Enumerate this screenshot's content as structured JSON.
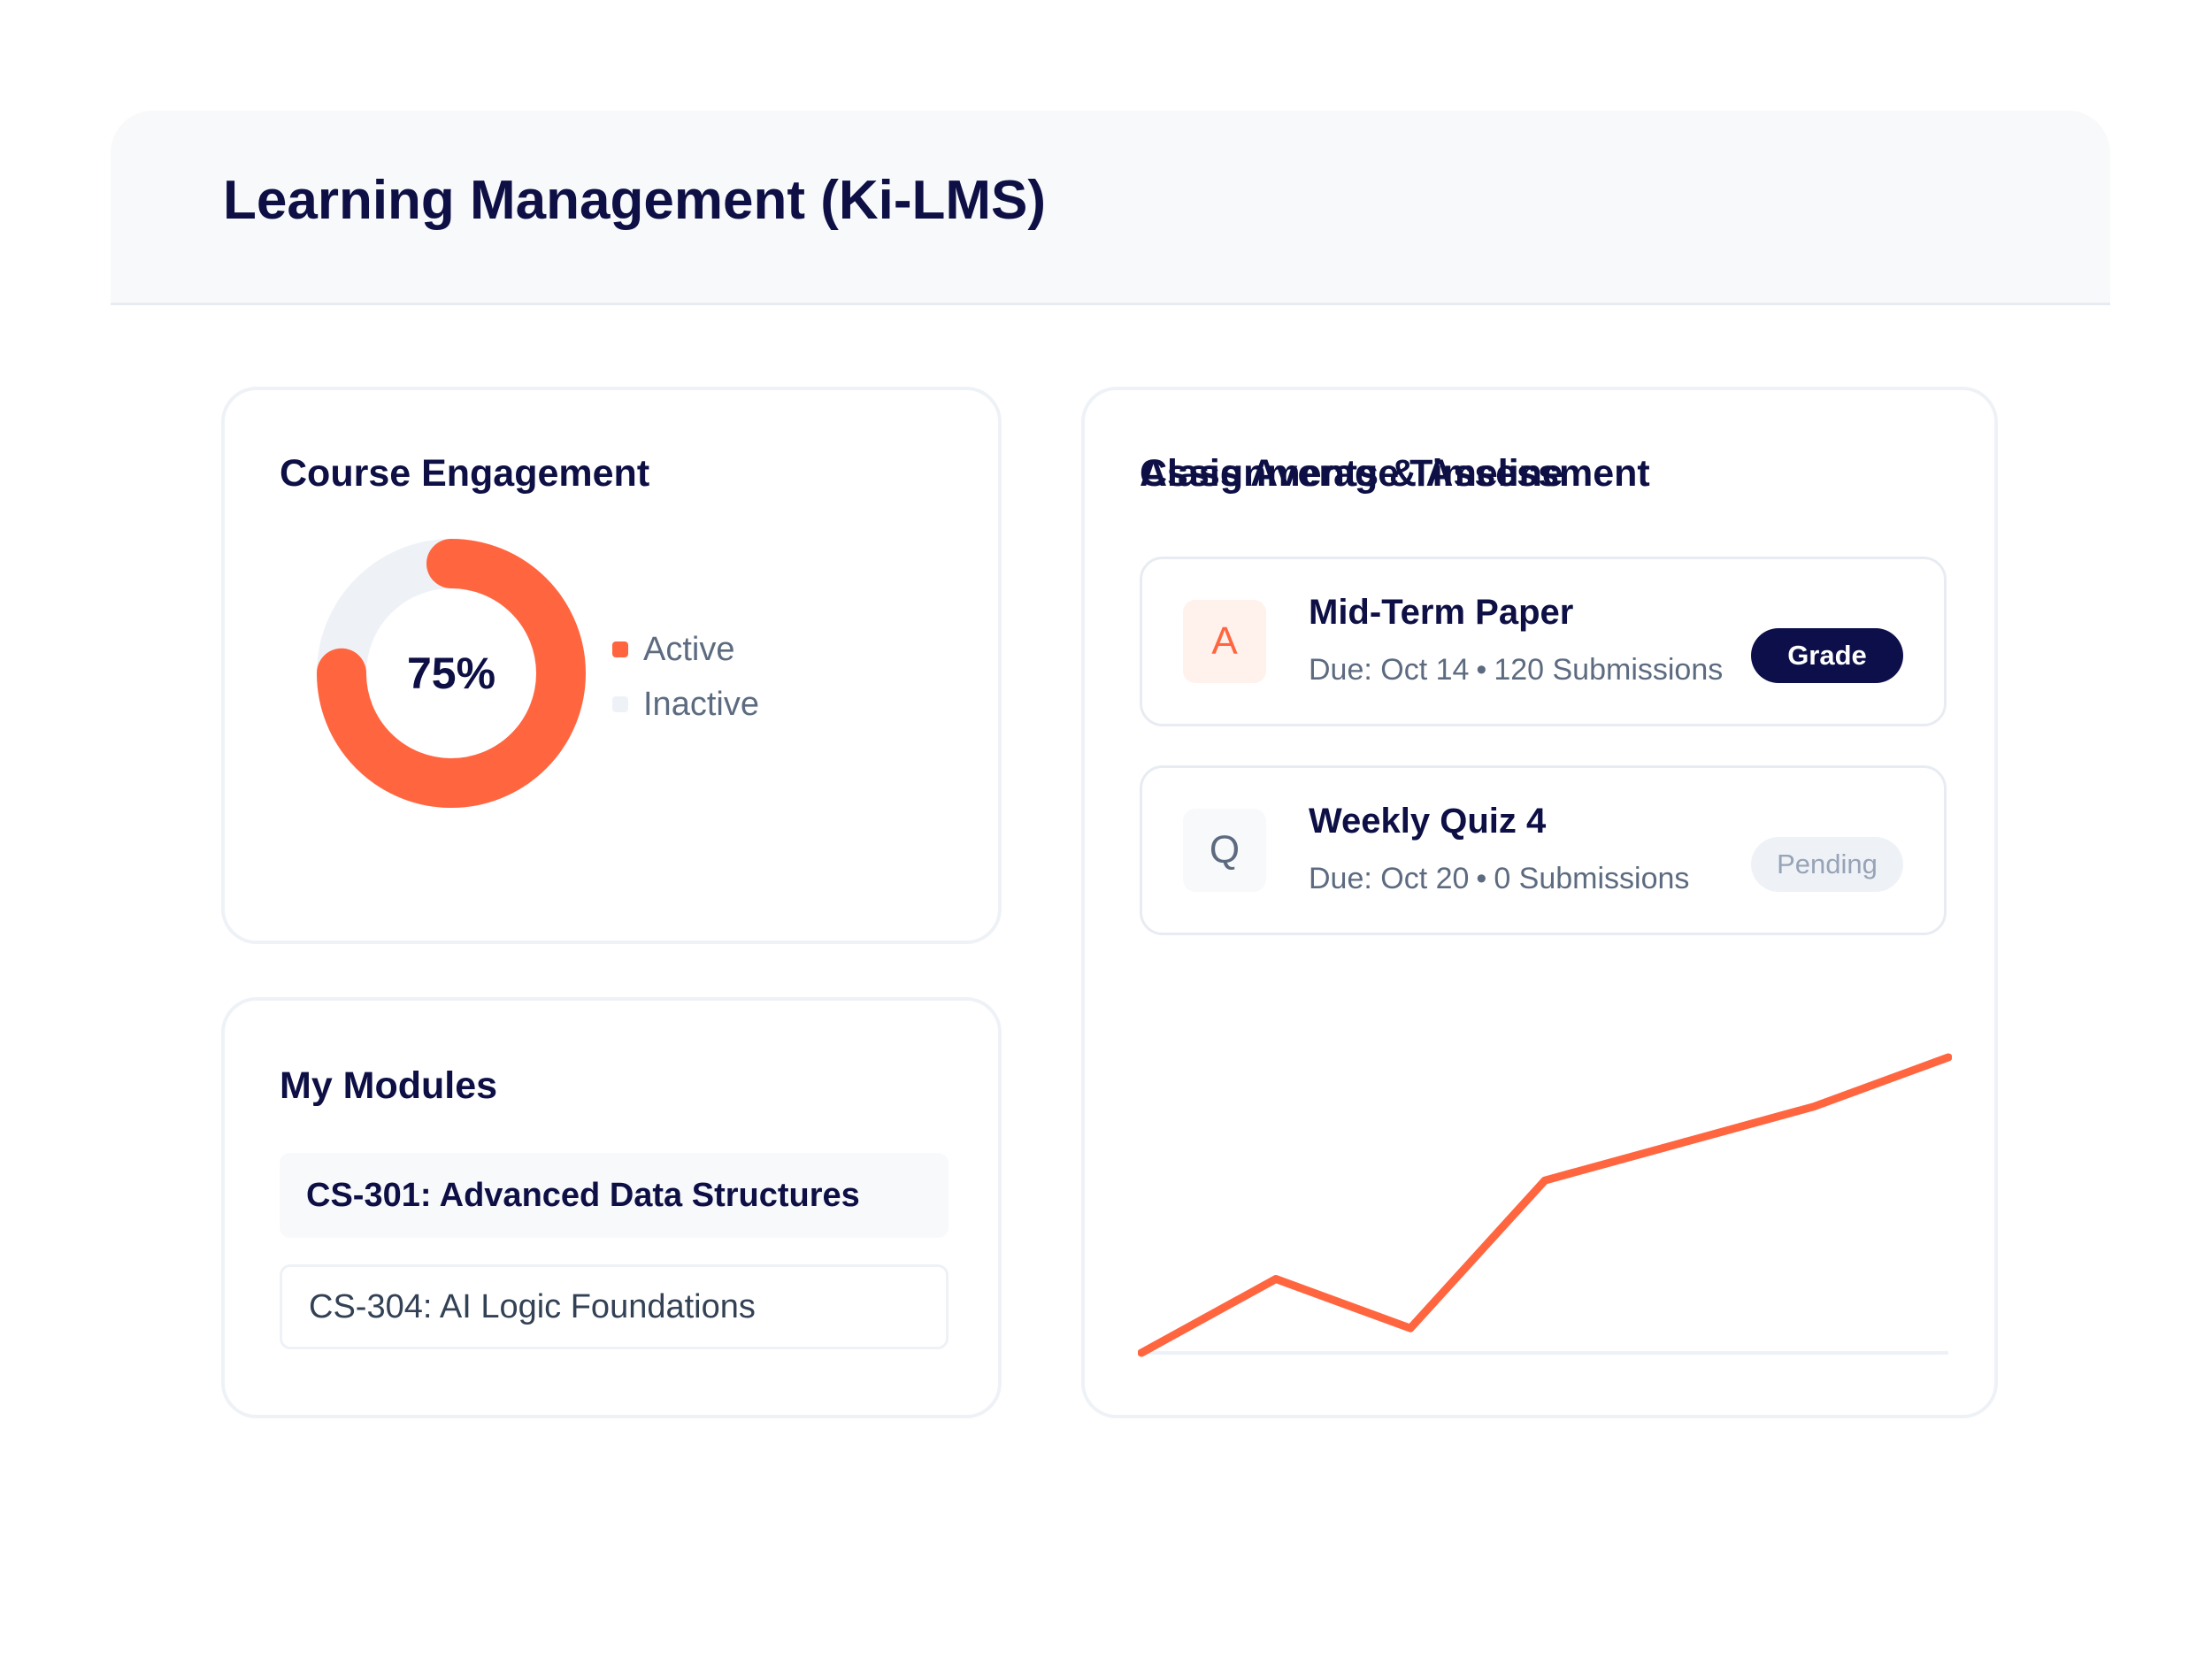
{
  "header": {
    "title": "Learning Management (Ki-LMS)"
  },
  "engagement": {
    "title": "Course Engagement",
    "center_label": "75%",
    "legend": [
      {
        "label": "Active",
        "color": "#ff6640"
      },
      {
        "label": "Inactive",
        "color": "#eef2f7"
      }
    ]
  },
  "modules": {
    "title": "My Modules",
    "items": [
      {
        "label": "CS-301: Advanced Data Structures",
        "selected": true
      },
      {
        "label": "CS-304: AI Logic Foundations",
        "selected": false
      }
    ]
  },
  "assignments": {
    "title": "Assignments & Assessment",
    "items": [
      {
        "initial": "A",
        "title": "Mid-Term Paper",
        "due": "Due: Oct 14",
        "separator": "•",
        "submissions": "120 Submissions",
        "action": "Grade"
      },
      {
        "initial": "Q",
        "title": "Weekly Quiz 4",
        "due": "Due: Oct 20",
        "separator": "•",
        "submissions": "0 Submissions",
        "status": "Pending"
      }
    ]
  },
  "timeline": {
    "title": "Class Average Timeline"
  },
  "colors": {
    "accent": "#ff6640",
    "navy": "#0d0f45",
    "track": "#eef2f7"
  },
  "chart_data": [
    {
      "type": "pie",
      "values": [
        75,
        25
      ],
      "labels": [
        "Active",
        "Inactive"
      ],
      "center_label": "75%"
    },
    {
      "type": "line",
      "title": "Class Average Timeline",
      "x": [
        1,
        2,
        3,
        4,
        5,
        6,
        7
      ],
      "series": [
        {
          "values": [
            0,
            30,
            10,
            70,
            85,
            100,
            120
          ]
        }
      ],
      "ylim": [
        0,
        120
      ],
      "grid": false
    }
  ]
}
